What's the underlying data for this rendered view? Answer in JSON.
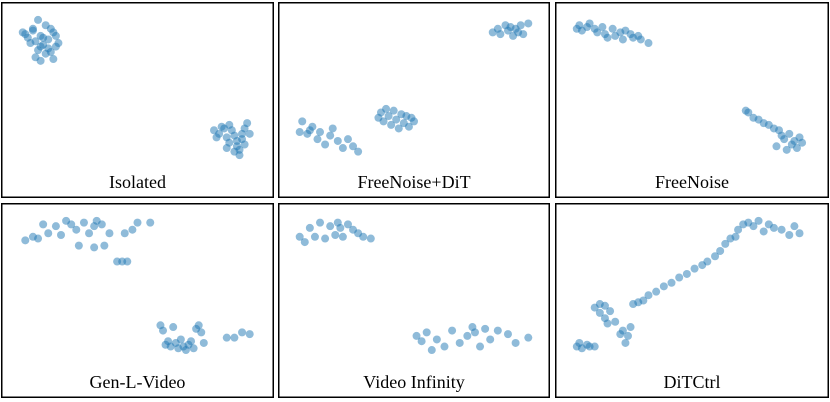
{
  "chart_data": [
    {
      "type": "scatter",
      "title": "Isolated",
      "color": "#1f77b4",
      "xlim": [
        0,
        100
      ],
      "ylim": [
        0,
        100
      ],
      "x": [
        5,
        7,
        9,
        10,
        12,
        14,
        15,
        17,
        18,
        6,
        8,
        11,
        13,
        16,
        19,
        10,
        12,
        14,
        9,
        15,
        17,
        13,
        11,
        18,
        16,
        12,
        80,
        82,
        84,
        85,
        86,
        88,
        89,
        90,
        91,
        92,
        93,
        81,
        83,
        87,
        88,
        90,
        92,
        86,
        89,
        91,
        85,
        94
      ],
      "values": [
        88,
        85,
        90,
        83,
        86,
        92,
        84,
        88,
        80,
        87,
        82,
        78,
        81,
        77,
        82,
        74,
        72,
        76,
        89,
        79,
        73,
        85,
        95,
        86,
        90,
        80,
        33,
        31,
        34,
        29,
        26,
        30,
        24,
        22,
        28,
        34,
        37,
        29,
        35,
        33,
        21,
        19,
        25,
        36,
        27,
        31,
        23,
        31
      ]
    },
    {
      "type": "scatter",
      "title": "FreeNoise+DiT",
      "color": "#1f77b4",
      "xlim": [
        0,
        100
      ],
      "ylim": [
        0,
        100
      ],
      "x": [
        81,
        83,
        84,
        86,
        87,
        88,
        89,
        90,
        91,
        92,
        93,
        95,
        36,
        37,
        38,
        39,
        40,
        41,
        42,
        43,
        44,
        45,
        46,
        47,
        48,
        49,
        50,
        5,
        6,
        8,
        9,
        10,
        12,
        13,
        15,
        17,
        18,
        20,
        22,
        24,
        26,
        28
      ],
      "values": [
        88,
        90,
        87,
        92,
        89,
        91,
        86,
        90,
        88,
        92,
        87,
        93,
        40,
        43,
        38,
        45,
        41,
        36,
        44,
        39,
        34,
        42,
        37,
        41,
        35,
        40,
        38,
        32,
        38,
        31,
        33,
        35,
        28,
        32,
        25,
        30,
        34,
        27,
        23,
        28,
        24,
        21
      ]
    },
    {
      "type": "scatter",
      "title": "FreeNoise",
      "color": "#1f77b4",
      "xlim": [
        0,
        100
      ],
      "ylim": [
        0,
        100
      ],
      "x": [
        5,
        6,
        7,
        9,
        10,
        12,
        13,
        15,
        16,
        17,
        19,
        20,
        22,
        23,
        24,
        26,
        27,
        29,
        30,
        33,
        71,
        72,
        74,
        76,
        78,
        80,
        82,
        84,
        85,
        86,
        88,
        89,
        90,
        91,
        92,
        93,
        87,
        83
      ],
      "values": [
        90,
        92,
        89,
        91,
        93,
        90,
        88,
        91,
        87,
        85,
        90,
        86,
        88,
        84,
        89,
        87,
        85,
        86,
        84,
        82,
        44,
        43,
        40,
        39,
        37,
        36,
        34,
        33,
        30,
        28,
        31,
        25,
        27,
        23,
        29,
        26,
        22,
        24
      ]
    },
    {
      "type": "scatter",
      "title": "Gen-L-Video",
      "color": "#1f77b4",
      "xlim": [
        0,
        100
      ],
      "ylim": [
        0,
        100
      ],
      "x": [
        6,
        9,
        11,
        13,
        15,
        18,
        20,
        22,
        24,
        26,
        27,
        29,
        31,
        33,
        34,
        36,
        37,
        39,
        42,
        44,
        46,
        48,
        50,
        55,
        45,
        33,
        59,
        60,
        61,
        62,
        63,
        64,
        65,
        66,
        67,
        68,
        69,
        70,
        71,
        72,
        73,
        74,
        75,
        76,
        85,
        88,
        91,
        94
      ],
      "values": [
        84,
        86,
        85,
        93,
        88,
        92,
        87,
        95,
        93,
        90,
        81,
        94,
        88,
        80,
        95,
        93,
        81,
        88,
        72,
        72,
        72,
        90,
        94,
        94,
        88,
        92,
        36,
        33,
        25,
        27,
        24,
        35,
        26,
        23,
        28,
        24,
        22,
        25,
        27,
        23,
        34,
        36,
        32,
        26,
        29,
        29,
        32,
        31
      ]
    },
    {
      "type": "scatter",
      "title": "Video Infinity",
      "color": "#1f77b4",
      "xlim": [
        0,
        100
      ],
      "ylim": [
        0,
        100
      ],
      "x": [
        5,
        7,
        9,
        11,
        13,
        15,
        17,
        19,
        20,
        21,
        22,
        24,
        26,
        28,
        30,
        33,
        51,
        53,
        55,
        57,
        59,
        62,
        65,
        68,
        71,
        73,
        74,
        76,
        78,
        80,
        83,
        87,
        90,
        95
      ],
      "values": [
        86,
        83,
        91,
        86,
        94,
        85,
        92,
        87,
        94,
        91,
        86,
        93,
        90,
        88,
        86,
        85,
        30,
        27,
        32,
        22,
        28,
        24,
        33,
        26,
        30,
        35,
        32,
        24,
        34,
        28,
        33,
        31,
        26,
        29
      ]
    },
    {
      "type": "scatter",
      "title": "DiTCtrl",
      "color": "#1f77b4",
      "xlim": [
        0,
        100
      ],
      "ylim": [
        0,
        100
      ],
      "x": [
        5,
        6,
        7,
        9,
        10,
        12,
        14,
        16,
        17,
        18,
        20,
        22,
        23,
        24,
        25,
        26,
        12,
        14,
        16,
        27,
        29,
        31,
        33,
        36,
        39,
        42,
        45,
        48,
        51,
        54,
        56,
        59,
        61,
        63,
        65,
        67,
        68,
        70,
        72,
        74,
        76,
        78,
        80,
        82,
        85,
        88,
        90,
        92
      ],
      "values": [
        24,
        26,
        23,
        25,
        24,
        24,
        43,
        40,
        37,
        44,
        38,
        31,
        33,
        26,
        30,
        35,
        46,
        48,
        47,
        48,
        49,
        50,
        53,
        55,
        58,
        60,
        63,
        65,
        68,
        70,
        72,
        75,
        78,
        82,
        85,
        86,
        90,
        93,
        94,
        92,
        95,
        89,
        93,
        91,
        90,
        87,
        92,
        88
      ]
    }
  ]
}
